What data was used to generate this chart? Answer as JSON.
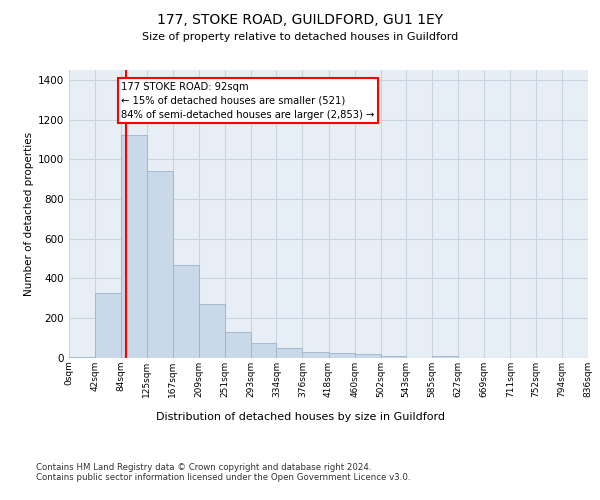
{
  "title1": "177, STOKE ROAD, GUILDFORD, GU1 1EY",
  "title2": "Size of property relative to detached houses in Guildford",
  "xlabel": "Distribution of detached houses by size in Guildford",
  "ylabel": "Number of detached properties",
  "bar_color": "#c9d9ea",
  "bar_edge_color": "#9ab4cc",
  "grid_color": "#c8d4e0",
  "background_color": "#e8eef5",
  "property_line_x": 92,
  "property_line_color": "red",
  "annotation_text": "177 STOKE ROAD: 92sqm\n← 15% of detached houses are smaller (521)\n84% of semi-detached houses are larger (2,853) →",
  "annotation_box_color": "white",
  "annotation_box_edge_color": "red",
  "footer": "Contains HM Land Registry data © Crown copyright and database right 2024.\nContains public sector information licensed under the Open Government Licence v3.0.",
  "bin_edges": [
    0,
    42,
    84,
    125,
    167,
    209,
    251,
    293,
    334,
    376,
    418,
    460,
    502,
    543,
    585,
    627,
    669,
    711,
    752,
    794,
    836
  ],
  "bin_labels": [
    "0sqm",
    "42sqm",
    "84sqm",
    "125sqm",
    "167sqm",
    "209sqm",
    "251sqm",
    "293sqm",
    "334sqm",
    "376sqm",
    "418sqm",
    "460sqm",
    "502sqm",
    "543sqm",
    "585sqm",
    "627sqm",
    "669sqm",
    "711sqm",
    "752sqm",
    "794sqm",
    "836sqm"
  ],
  "bar_heights": [
    5,
    325,
    1120,
    940,
    465,
    270,
    130,
    75,
    50,
    30,
    25,
    20,
    10,
    0,
    10,
    0,
    0,
    0,
    0,
    0
  ],
  "ylim": [
    0,
    1450
  ],
  "yticks": [
    0,
    200,
    400,
    600,
    800,
    1000,
    1200,
    1400
  ]
}
